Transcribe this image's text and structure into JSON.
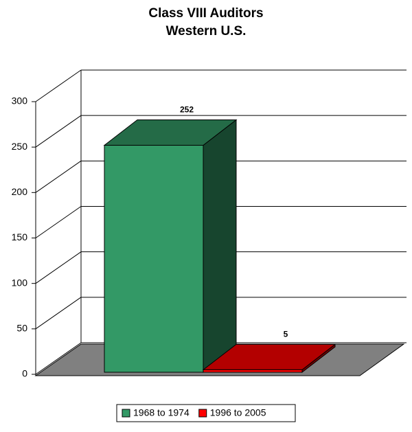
{
  "chart_data": {
    "type": "bar3d",
    "title": "Class VIII Auditors",
    "subtitle": "Western U.S.",
    "categories": [
      null
    ],
    "series": [
      {
        "name": "1968 to 1974",
        "color": "#339966",
        "values": [
          252
        ]
      },
      {
        "name": "1996 to 2005",
        "color": "#ff0000",
        "values": [
          5
        ]
      }
    ],
    "ylim": [
      0,
      300
    ],
    "yticks": [
      0,
      50,
      100,
      150,
      200,
      250,
      300
    ],
    "grid": true,
    "legend": "bottom"
  }
}
